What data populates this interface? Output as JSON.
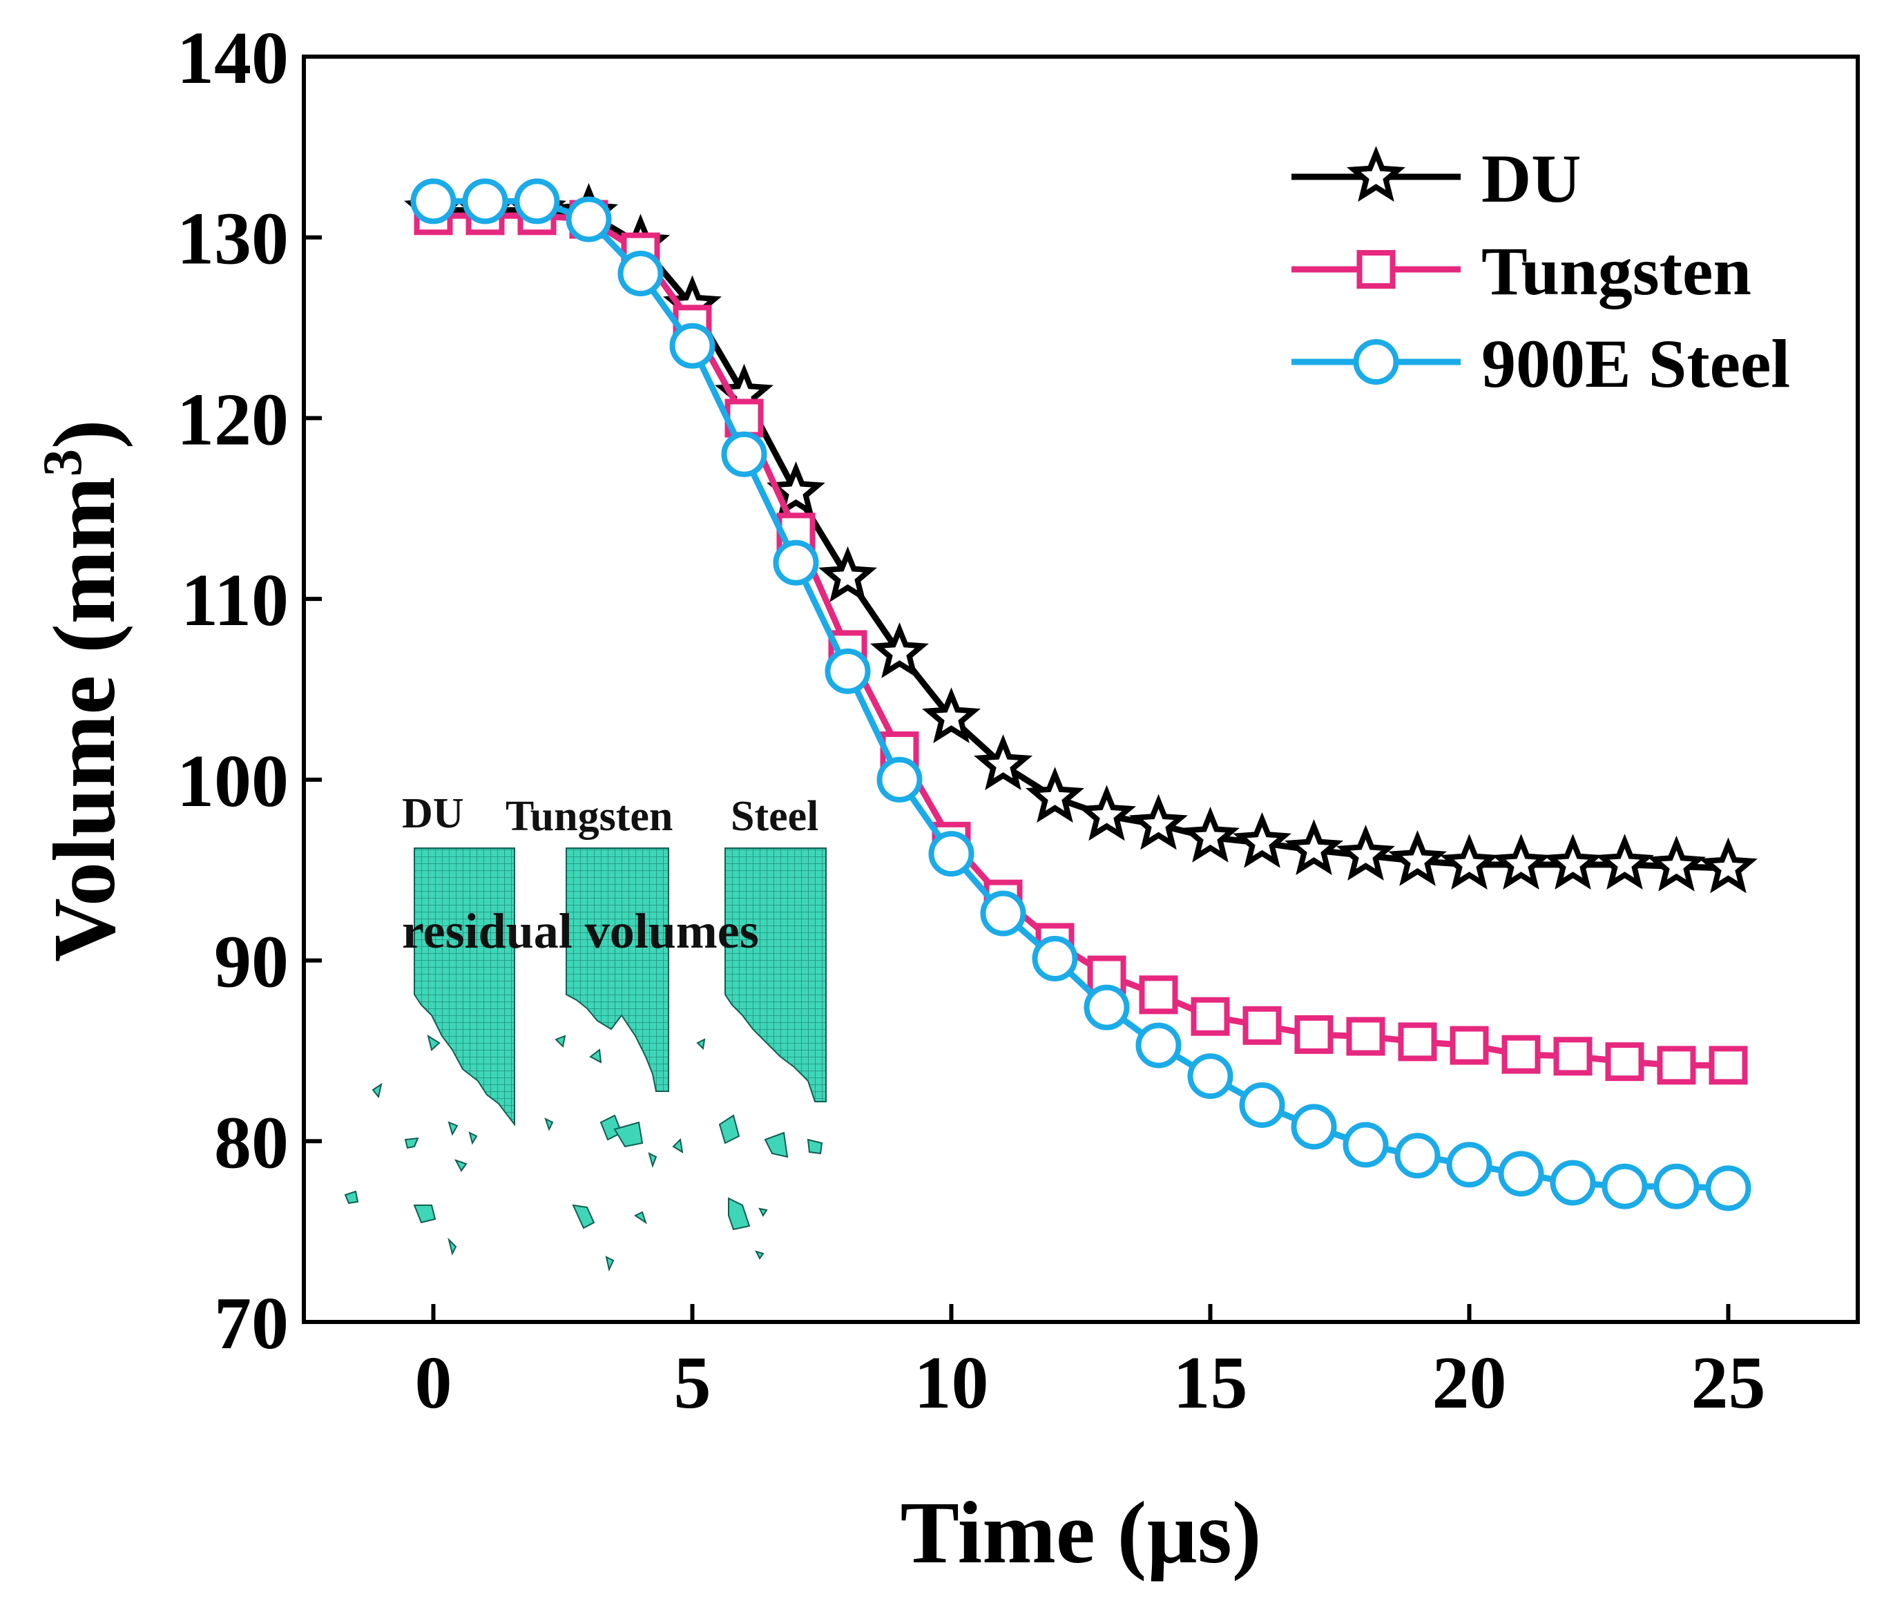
{
  "chart_data": {
    "type": "line",
    "title": "",
    "xlabel": "Time (µs)",
    "ylabel_main": "Volume (mm",
    "ylabel_sup": "3",
    "ylabel_close": ")",
    "xlim": [
      -2.5,
      27.5
    ],
    "ylim": [
      70,
      140
    ],
    "xticks": [
      0,
      5,
      10,
      15,
      20,
      25
    ],
    "yticks": [
      70,
      80,
      90,
      100,
      110,
      120,
      130,
      140
    ],
    "grid": false,
    "legend_position": "top-right",
    "x": [
      0,
      1,
      2,
      3,
      4,
      5,
      6,
      7,
      8,
      9,
      10,
      11,
      12,
      13,
      14,
      15,
      16,
      17,
      18,
      19,
      20,
      21,
      22,
      23,
      24,
      25
    ],
    "series": [
      {
        "name": "DU",
        "color": "#000000",
        "marker": "star",
        "values": [
          131.5,
          131.5,
          131.5,
          131.3,
          129.6,
          126.2,
          121.3,
          115.9,
          111.2,
          107.0,
          103.4,
          100.8,
          99.0,
          98.0,
          97.5,
          96.8,
          96.5,
          96.1,
          95.8,
          95.5,
          95.3,
          95.3,
          95.3,
          95.3,
          95.2,
          95.1
        ]
      },
      {
        "name": "Tungsten",
        "color": "#e6287f",
        "marker": "square",
        "values": [
          131.2,
          131.2,
          131.2,
          131.0,
          129.2,
          125.2,
          120.0,
          113.7,
          107.2,
          101.6,
          96.6,
          93.4,
          91.0,
          89.2,
          88.1,
          86.9,
          86.4,
          85.9,
          85.8,
          85.5,
          85.3,
          84.8,
          84.7,
          84.4,
          84.2,
          84.2
        ]
      },
      {
        "name": "900E Steel",
        "color": "#1aabe8",
        "marker": "circle",
        "values": [
          132.0,
          132.0,
          132.0,
          131.0,
          128.0,
          124.0,
          118.0,
          112.0,
          106.0,
          100.0,
          95.9,
          92.6,
          90.1,
          87.4,
          85.3,
          83.6,
          82.0,
          80.8,
          79.8,
          79.2,
          78.7,
          78.2,
          77.7,
          77.5,
          77.5,
          77.4
        ]
      }
    ],
    "annotations": {
      "inset_labels": [
        "DU",
        "Tungsten",
        "Steel"
      ],
      "inset_caption": "residual volumes"
    }
  }
}
